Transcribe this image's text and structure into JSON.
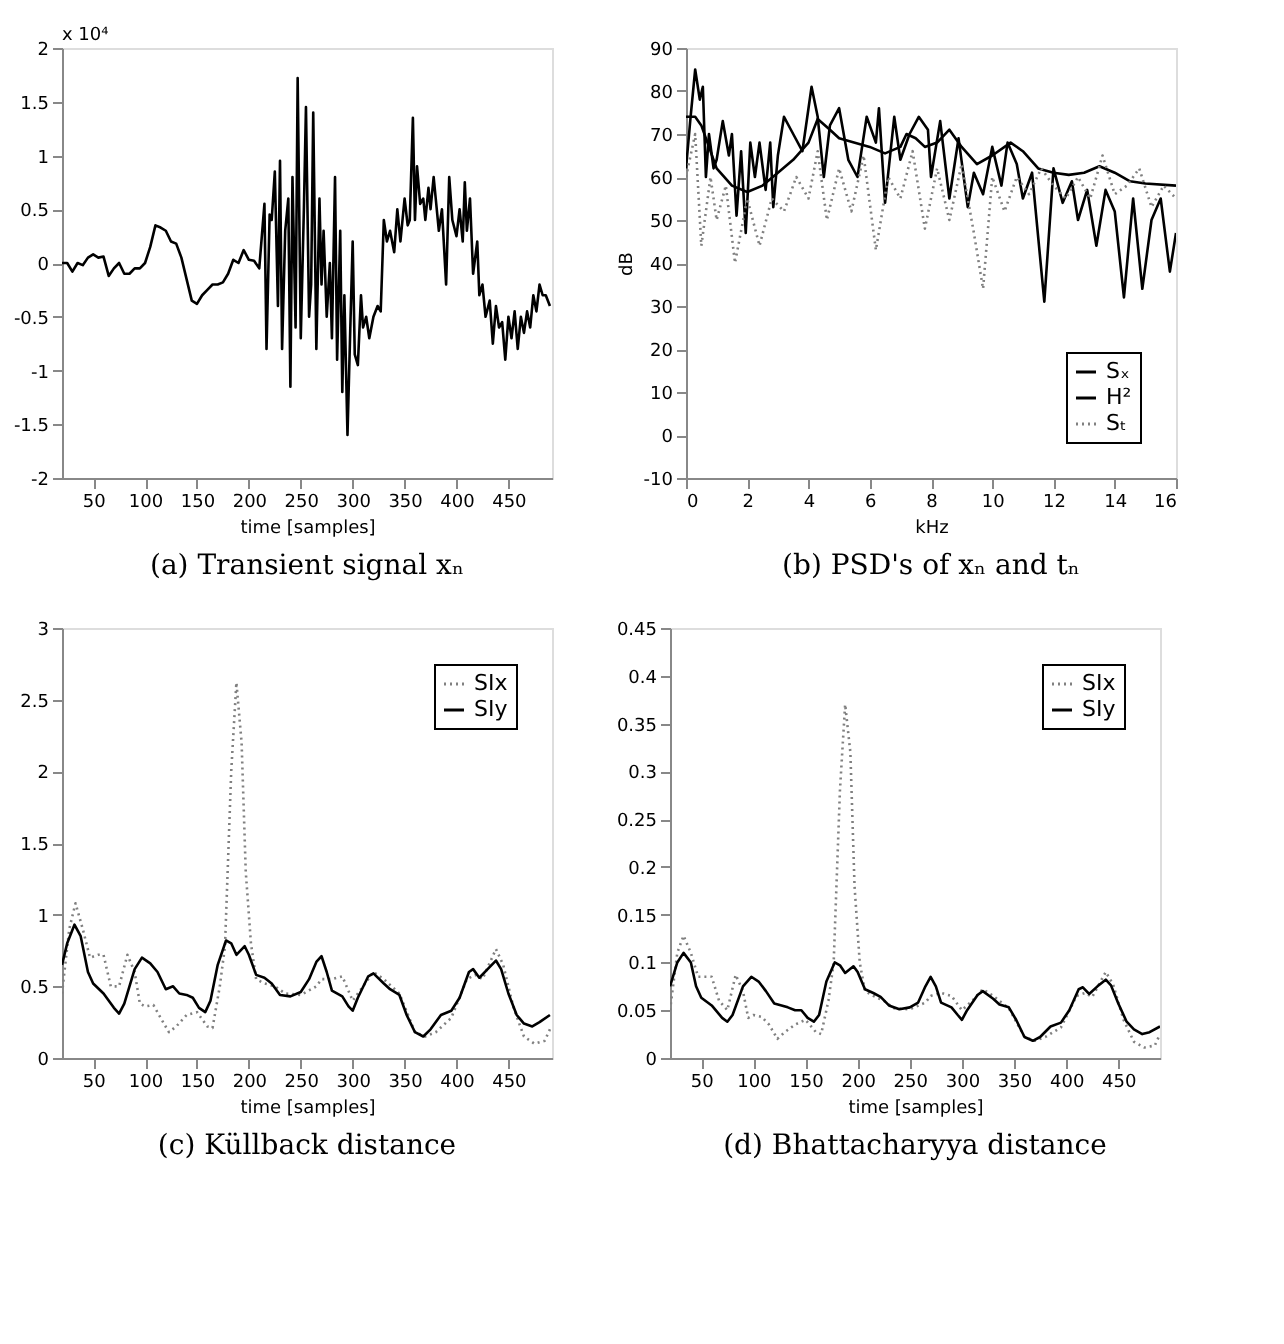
{
  "chart_data": [
    {
      "type": "line",
      "title": "(a) Transient signal xₙ",
      "xlabel": "time [samples]",
      "annotations": [
        "x 10⁴"
      ],
      "xlim": [
        20,
        492
      ],
      "xticks": [
        50,
        100,
        150,
        200,
        250,
        300,
        350,
        400,
        450
      ],
      "ylim": [
        -2,
        2
      ],
      "yticks": [
        -2,
        -1.5,
        -1,
        -0.5,
        0,
        0.5,
        1,
        1.5,
        2
      ],
      "grid": false,
      "series": [
        {
          "color": "#000000",
          "x": [
            20,
            25,
            30,
            35,
            40,
            45,
            50,
            55,
            60,
            65,
            70,
            75,
            80,
            85,
            90,
            95,
            100,
            105,
            110,
            115,
            120,
            125,
            130,
            135,
            140,
            145,
            150,
            155,
            160,
            165,
            170,
            175,
            180,
            185,
            190,
            195,
            200,
            205,
            210,
            215,
            217,
            220,
            222,
            225,
            228,
            230,
            232,
            235,
            238,
            240,
            242,
            245,
            247,
            250,
            253,
            255,
            258,
            260,
            262,
            265,
            268,
            270,
            272,
            275,
            278,
            280,
            283,
            285,
            288,
            290,
            292,
            295,
            298,
            300,
            302,
            305,
            308,
            310,
            313,
            316,
            320,
            324,
            327,
            330,
            333,
            336,
            340,
            343,
            346,
            350,
            353,
            355,
            358,
            360,
            362,
            365,
            368,
            370,
            373,
            375,
            378,
            380,
            383,
            386,
            390,
            393,
            396,
            400,
            403,
            406,
            408,
            410,
            413,
            416,
            420,
            422,
            425,
            428,
            432,
            435,
            438,
            441,
            444,
            447,
            450,
            453,
            456,
            459,
            462,
            465,
            468,
            471,
            474,
            477,
            480,
            483,
            486,
            490
          ],
          "values": [
            0,
            0,
            -0.08,
            0,
            -0.02,
            0.05,
            0.08,
            0.05,
            0.06,
            -0.12,
            -0.05,
            0,
            -0.1,
            -0.1,
            -0.05,
            -0.05,
            0,
            0.15,
            0.35,
            0.33,
            0.3,
            0.2,
            0.18,
            0.05,
            -0.15,
            -0.35,
            -0.38,
            -0.3,
            -0.25,
            -0.2,
            -0.2,
            -0.18,
            -0.1,
            0.03,
            0,
            0.12,
            0.03,
            0.02,
            -0.05,
            0.55,
            -0.8,
            0.45,
            0.4,
            0.85,
            -0.4,
            0.95,
            -0.8,
            0.3,
            0.6,
            -1.15,
            0.8,
            -0.6,
            1.72,
            -0.7,
            0.5,
            1.45,
            -0.5,
            -0.2,
            1.4,
            -0.8,
            0.6,
            -0.2,
            0.3,
            -0.5,
            0,
            -0.7,
            0.8,
            -0.9,
            0.3,
            -1.2,
            -0.3,
            -1.6,
            -0.5,
            0.2,
            -0.85,
            -0.95,
            -0.3,
            -0.6,
            -0.5,
            -0.7,
            -0.5,
            -0.4,
            -0.45,
            0.4,
            0.2,
            0.3,
            0.1,
            0.5,
            0.2,
            0.6,
            0.35,
            0.4,
            1.35,
            0.4,
            0.9,
            0.55,
            0.6,
            0.4,
            0.7,
            0.5,
            0.8,
            0.6,
            0.3,
            0.5,
            -0.2,
            0.8,
            0.4,
            0.25,
            0.5,
            0.2,
            0.75,
            0.3,
            0.6,
            -0.1,
            0.2,
            -0.3,
            -0.2,
            -0.5,
            -0.35,
            -0.75,
            -0.4,
            -0.6,
            -0.55,
            -0.9,
            -0.5,
            -0.7,
            -0.45,
            -0.8,
            -0.5,
            -0.65,
            -0.45,
            -0.6,
            -0.3,
            -0.45,
            -0.2,
            -0.3,
            -0.3,
            -0.4
          ]
        }
      ]
    },
    {
      "type": "line",
      "title": "(b) PSD's of xₙ and tₙ",
      "xlabel": "kHz",
      "ylabel": "dB",
      "xlim": [
        0,
        16
      ],
      "xticks": [
        0,
        2,
        4,
        6,
        8,
        10,
        12,
        14,
        16
      ],
      "ylim": [
        -10,
        90
      ],
      "yticks": [
        -10,
        0,
        10,
        20,
        30,
        40,
        50,
        60,
        70,
        80,
        90
      ],
      "grid": false,
      "legend": "bottom right",
      "series": [
        {
          "name": "Sₓ",
          "color": "#000000",
          "line_style": "solid",
          "x": [
            0,
            0.15,
            0.3,
            0.45,
            0.55,
            0.65,
            0.75,
            0.9,
            1.0,
            1.2,
            1.4,
            1.5,
            1.65,
            1.8,
            1.95,
            2.1,
            2.25,
            2.4,
            2.6,
            2.75,
            2.85,
            3.0,
            3.2,
            3.5,
            3.8,
            4.1,
            4.3,
            4.5,
            4.7,
            5.0,
            5.3,
            5.6,
            5.9,
            6.2,
            6.3,
            6.5,
            6.8,
            7.0,
            7.3,
            7.6,
            7.9,
            8.0,
            8.3,
            8.6,
            8.9,
            9.2,
            9.4,
            9.7,
            10.0,
            10.3,
            10.5,
            10.8,
            11.0,
            11.3,
            11.7,
            12.0,
            12.3,
            12.6,
            12.8,
            13.1,
            13.4,
            13.7,
            14.0,
            14.3,
            14.6,
            14.9,
            15.2,
            15.5,
            15.8,
            16
          ],
          "values": [
            62,
            74,
            85,
            78,
            81,
            60,
            70,
            62,
            64,
            73,
            65,
            70,
            51,
            66,
            47,
            68,
            60,
            68,
            57,
            68,
            53,
            65,
            74,
            70,
            66,
            81,
            74,
            60,
            72,
            76,
            64,
            60,
            74,
            68,
            76,
            54,
            74,
            64,
            70,
            74,
            71,
            60,
            73,
            55,
            69,
            53,
            61,
            56,
            67,
            58,
            68,
            63,
            55,
            61,
            31,
            62,
            54,
            59,
            50,
            57,
            44,
            57,
            52,
            32,
            55,
            34,
            50,
            55,
            38,
            47
          ]
        },
        {
          "name": "H²",
          "color": "#000000",
          "line_style": "solid",
          "x": [
            0,
            0.3,
            0.5,
            0.7,
            1,
            1.5,
            2,
            2.5,
            3,
            3.5,
            4,
            4.3,
            4.7,
            5,
            6,
            6.5,
            7,
            7.2,
            7.5,
            7.8,
            8.2,
            8.6,
            9,
            9.5,
            10,
            10.6,
            11,
            11.5,
            12,
            12.5,
            13,
            13.5,
            14,
            14.5,
            15,
            16
          ],
          "values": [
            74,
            74,
            72,
            68,
            62,
            58,
            56.5,
            58,
            61,
            64,
            68,
            73.5,
            71,
            69,
            67,
            65.5,
            67,
            70,
            69,
            67,
            68,
            71,
            67,
            63,
            65,
            68,
            66,
            62,
            61,
            60.5,
            61,
            62.5,
            61,
            59,
            58.5,
            58
          ]
        },
        {
          "name": "Sₜ",
          "color": "#808080",
          "line_style": "dotted",
          "x": [
            0,
            0.3,
            0.5,
            0.8,
            1.0,
            1.3,
            1.6,
            2.0,
            2.4,
            2.8,
            3.2,
            3.6,
            4.0,
            4.3,
            4.6,
            5.0,
            5.4,
            5.8,
            6.2,
            6.6,
            7.0,
            7.4,
            7.8,
            8.2,
            8.6,
            9.0,
            9.4,
            9.7,
            10.0,
            10.4,
            10.8,
            11.2,
            11.6,
            12.0,
            12.4,
            12.8,
            13.2,
            13.6,
            14.0,
            14.4,
            14.8,
            15.2,
            15.6,
            16
          ],
          "values": [
            60,
            70,
            44,
            60,
            50,
            58,
            40,
            55,
            44,
            55,
            52,
            60,
            55,
            66,
            50,
            62,
            52,
            65,
            43,
            60,
            55,
            66,
            48,
            62,
            50,
            63,
            47,
            34,
            60,
            52,
            60,
            56,
            62,
            58,
            55,
            60,
            55,
            65,
            56,
            58,
            62,
            53,
            58,
            55
          ]
        }
      ]
    },
    {
      "type": "line",
      "title": "(c) Küllback distance",
      "xlabel": "time [samples]",
      "xlim": [
        20,
        492
      ],
      "xticks": [
        50,
        100,
        150,
        200,
        250,
        300,
        350,
        400,
        450
      ],
      "ylim": [
        0,
        3
      ],
      "yticks": [
        0,
        0.5,
        1,
        1.5,
        2,
        2.5,
        3
      ],
      "grid": false,
      "legend": "top right",
      "series": [
        {
          "name": "SIx",
          "color": "#808080",
          "line_style": "dotted",
          "x": [
            20,
            27,
            33,
            40,
            47,
            55,
            60,
            67,
            75,
            83,
            90,
            95,
            100,
            108,
            115,
            123,
            130,
            140,
            150,
            160,
            165,
            172,
            177,
            183,
            188,
            193,
            197,
            202,
            207,
            215,
            225,
            235,
            250,
            265,
            270,
            280,
            290,
            300,
            310,
            320,
            330,
            345,
            360,
            370,
            380,
            395,
            410,
            418,
            425,
            438,
            445,
            455,
            465,
            475,
            485,
            490
          ],
          "values": [
            0.45,
            0.9,
            1.08,
            0.9,
            0.7,
            0.72,
            0.72,
            0.5,
            0.5,
            0.72,
            0.6,
            0.38,
            0.36,
            0.37,
            0.28,
            0.18,
            0.22,
            0.3,
            0.32,
            0.22,
            0.21,
            0.5,
            0.78,
            2.0,
            2.62,
            2.2,
            1.3,
            0.8,
            0.55,
            0.52,
            0.5,
            0.45,
            0.44,
            0.5,
            0.55,
            0.55,
            0.57,
            0.4,
            0.5,
            0.6,
            0.55,
            0.45,
            0.18,
            0.15,
            0.18,
            0.28,
            0.55,
            0.58,
            0.55,
            0.76,
            0.65,
            0.35,
            0.15,
            0.1,
            0.12,
            0.2
          ]
        },
        {
          "name": "SIy",
          "color": "#000000",
          "line_style": "solid",
          "x": [
            20,
            25,
            32,
            38,
            45,
            50,
            60,
            70,
            75,
            80,
            90,
            97,
            105,
            112,
            120,
            127,
            133,
            140,
            146,
            152,
            158,
            163,
            170,
            178,
            183,
            188,
            196,
            200,
            207,
            215,
            222,
            230,
            240,
            250,
            258,
            265,
            270,
            275,
            280,
            290,
            296,
            300,
            305,
            315,
            320,
            330,
            336,
            345,
            352,
            360,
            368,
            375,
            385,
            395,
            403,
            412,
            416,
            422,
            430,
            438,
            443,
            450,
            458,
            465,
            473,
            480,
            490
          ],
          "values": [
            0.65,
            0.8,
            0.93,
            0.85,
            0.6,
            0.52,
            0.45,
            0.35,
            0.31,
            0.38,
            0.62,
            0.7,
            0.66,
            0.6,
            0.48,
            0.5,
            0.45,
            0.44,
            0.42,
            0.35,
            0.32,
            0.4,
            0.65,
            0.82,
            0.8,
            0.72,
            0.78,
            0.72,
            0.58,
            0.56,
            0.52,
            0.44,
            0.43,
            0.46,
            0.55,
            0.67,
            0.71,
            0.6,
            0.47,
            0.43,
            0.36,
            0.33,
            0.42,
            0.57,
            0.59,
            0.52,
            0.48,
            0.44,
            0.3,
            0.18,
            0.15,
            0.2,
            0.3,
            0.33,
            0.42,
            0.6,
            0.62,
            0.56,
            0.62,
            0.68,
            0.62,
            0.45,
            0.3,
            0.24,
            0.22,
            0.25,
            0.3
          ]
        }
      ]
    },
    {
      "type": "line",
      "title": "(d) Bhattacharyya distance",
      "xlabel": "time [samples]",
      "xlim": [
        20,
        490
      ],
      "xticks": [
        50,
        100,
        150,
        200,
        250,
        300,
        350,
        400,
        450
      ],
      "ylim": [
        0,
        0.45
      ],
      "yticks": [
        0,
        0.05,
        0.1,
        0.15,
        0.2,
        0.25,
        0.3,
        0.35,
        0.4,
        0.45
      ],
      "grid": false,
      "legend": "top right",
      "series": [
        {
          "name": "SIx",
          "color": "#808080",
          "line_style": "dotted",
          "x": [
            20,
            27,
            33,
            40,
            47,
            55,
            60,
            67,
            75,
            83,
            90,
            95,
            100,
            108,
            115,
            123,
            130,
            140,
            150,
            160,
            165,
            172,
            177,
            183,
            188,
            193,
            197,
            202,
            207,
            215,
            225,
            235,
            250,
            265,
            270,
            280,
            290,
            300,
            310,
            320,
            330,
            345,
            360,
            370,
            380,
            395,
            410,
            418,
            425,
            438,
            445,
            455,
            465,
            475,
            485,
            490
          ],
          "values": [
            0.05,
            0.11,
            0.128,
            0.11,
            0.085,
            0.085,
            0.085,
            0.06,
            0.05,
            0.087,
            0.07,
            0.042,
            0.045,
            0.043,
            0.035,
            0.02,
            0.027,
            0.035,
            0.04,
            0.027,
            0.025,
            0.06,
            0.1,
            0.28,
            0.37,
            0.32,
            0.18,
            0.1,
            0.07,
            0.065,
            0.06,
            0.052,
            0.051,
            0.058,
            0.065,
            0.068,
            0.065,
            0.05,
            0.06,
            0.072,
            0.065,
            0.052,
            0.022,
            0.018,
            0.022,
            0.032,
            0.065,
            0.068,
            0.064,
            0.09,
            0.077,
            0.04,
            0.017,
            0.011,
            0.013,
            0.025
          ]
        },
        {
          "name": "SIy",
          "color": "#000000",
          "line_style": "solid",
          "x": [
            20,
            27,
            33,
            40,
            45,
            50,
            60,
            70,
            75,
            80,
            90,
            98,
            105,
            112,
            120,
            127,
            133,
            140,
            146,
            152,
            158,
            163,
            170,
            178,
            183,
            188,
            196,
            200,
            207,
            215,
            222,
            230,
            240,
            250,
            258,
            265,
            270,
            275,
            280,
            290,
            296,
            300,
            305,
            315,
            320,
            330,
            336,
            345,
            352,
            360,
            368,
            375,
            385,
            395,
            403,
            412,
            416,
            422,
            430,
            438,
            443,
            450,
            458,
            465,
            473,
            480,
            490
          ],
          "values": [
            0.075,
            0.1,
            0.11,
            0.1,
            0.075,
            0.063,
            0.055,
            0.042,
            0.038,
            0.045,
            0.075,
            0.085,
            0.08,
            0.07,
            0.057,
            0.055,
            0.053,
            0.05,
            0.05,
            0.042,
            0.038,
            0.045,
            0.08,
            0.1,
            0.097,
            0.089,
            0.096,
            0.09,
            0.072,
            0.068,
            0.064,
            0.055,
            0.051,
            0.053,
            0.058,
            0.075,
            0.085,
            0.075,
            0.058,
            0.053,
            0.045,
            0.04,
            0.05,
            0.066,
            0.07,
            0.062,
            0.056,
            0.053,
            0.04,
            0.022,
            0.018,
            0.022,
            0.033,
            0.037,
            0.05,
            0.072,
            0.074,
            0.067,
            0.075,
            0.082,
            0.076,
            0.057,
            0.038,
            0.03,
            0.025,
            0.027,
            0.033
          ]
        }
      ]
    }
  ]
}
